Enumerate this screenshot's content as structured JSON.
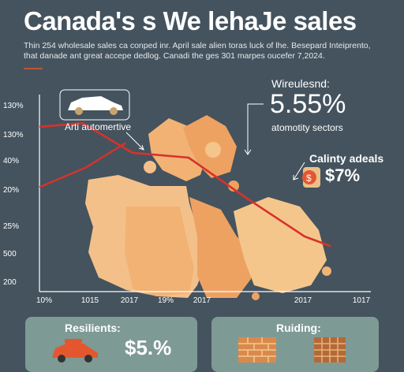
{
  "header": {
    "title": "Canada's s We lehaJe sales",
    "subtitle": "Thin 254 wholesale sales ca conped inr. April sale alien toras luck of lhe. Besepard Inteiprento, that danade ant great accepe dedlog. Canadi the ges 301 marpes oucefer 7,2024."
  },
  "callouts": {
    "automotive": "Arti automertive",
    "wholesale_label": "Wireulesnd:",
    "wholesale_value": "5.55%",
    "wholesale_sub": "atomotity sectors",
    "caliny_label": "Calinty adeals",
    "caliny_value": "$7%"
  },
  "panels": {
    "left_title": "Resilients:",
    "left_value": "$5.%",
    "right_title": "Ruiding:"
  },
  "colors": {
    "background": "#44535e",
    "line": "#d7322c",
    "map_light": "#f5c68b",
    "map_mid": "#f2b274",
    "map_dark": "#eea262",
    "panel": "#7e9a95"
  },
  "chart_data": {
    "type": "line",
    "title": "Canada's s We lehaJe sales",
    "xlabel": "",
    "ylabel": "",
    "x_tick_labels": [
      "10%",
      "1015",
      "2017",
      "19%",
      "2017",
      "2017",
      "1017"
    ],
    "y_tick_labels": [
      "130%",
      "130%",
      "40%",
      "20%",
      "25%",
      "500",
      "200"
    ],
    "grid": false,
    "legend": "none",
    "series": [
      {
        "points": [
          [
            0,
            40.5
          ],
          [
            0.13,
            42
          ],
          [
            0.28,
            30
          ],
          [
            0.45,
            28
          ],
          [
            0.62,
            12
          ],
          [
            0.8,
            -4
          ],
          [
            0.88,
            -8
          ]
        ]
      },
      {
        "points": [
          [
            0,
            16
          ],
          [
            0.14,
            24
          ],
          [
            0.26,
            34
          ]
        ]
      }
    ]
  }
}
